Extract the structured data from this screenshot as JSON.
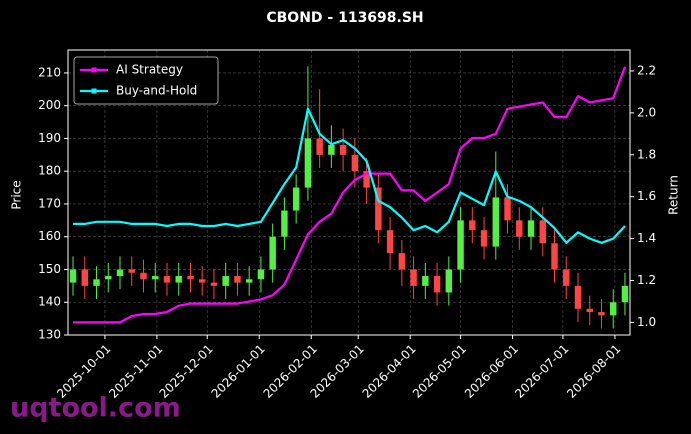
{
  "chart_data": {
    "type": "candlestick",
    "title": "CBOND - 113698.SH",
    "ylabel": "Price",
    "y2label": "Return",
    "watermark": "uqtool.com",
    "x": [
      "2025-09-12",
      "2025-09-19",
      "2025-09-26",
      "2025-10-03",
      "2025-10-10",
      "2025-10-17",
      "2025-10-24",
      "2025-10-31",
      "2025-11-07",
      "2025-11-14",
      "2025-11-21",
      "2025-11-28",
      "2025-12-05",
      "2025-12-12",
      "2025-12-19",
      "2025-12-26",
      "2026-01-02",
      "2026-01-09",
      "2026-01-16",
      "2026-01-23",
      "2026-01-30",
      "2026-02-06",
      "2026-02-13",
      "2026-02-20",
      "2026-02-27",
      "2026-03-06",
      "2026-03-13",
      "2026-03-20",
      "2026-03-27",
      "2026-04-03",
      "2026-04-10",
      "2026-04-17",
      "2026-04-24",
      "2026-05-01",
      "2026-05-08",
      "2026-05-15",
      "2026-05-22",
      "2026-05-29",
      "2026-06-05",
      "2026-06-12",
      "2026-06-19",
      "2026-06-26",
      "2026-07-03",
      "2026-07-10",
      "2026-07-17",
      "2026-07-24",
      "2026-07-31",
      "2026-08-07"
    ],
    "open": [
      146,
      150,
      145,
      147,
      148,
      150,
      149,
      147,
      148,
      146,
      148,
      147,
      146,
      145,
      148,
      146,
      147,
      150,
      160,
      168,
      175,
      190,
      185,
      188,
      185,
      180,
      175,
      162,
      155,
      150,
      145,
      148,
      143,
      150,
      165,
      162,
      157,
      172,
      165,
      160,
      165,
      158,
      150,
      145,
      138,
      137,
      136,
      140
    ],
    "high": [
      154,
      154,
      151,
      152,
      154,
      154,
      153,
      152,
      152,
      152,
      152,
      151,
      150,
      152,
      152,
      151,
      154,
      164,
      172,
      179,
      212,
      205,
      194,
      193,
      190,
      184,
      179,
      166,
      159,
      154,
      152,
      152,
      154,
      169,
      169,
      166,
      186,
      176,
      169,
      169,
      169,
      162,
      154,
      149,
      142,
      141,
      144,
      149
    ],
    "low": [
      142,
      141,
      141,
      143,
      144,
      145,
      143,
      143,
      142,
      142,
      143,
      142,
      141,
      141,
      142,
      142,
      143,
      146,
      156,
      164,
      171,
      181,
      181,
      180,
      175,
      170,
      158,
      150,
      145,
      141,
      141,
      139,
      139,
      146,
      158,
      153,
      153,
      161,
      156,
      156,
      154,
      146,
      141,
      134,
      133,
      132,
      132,
      136
    ],
    "close": [
      150,
      145,
      147,
      148,
      150,
      149,
      147,
      148,
      146,
      148,
      147,
      146,
      145,
      148,
      146,
      147,
      150,
      160,
      168,
      175,
      190,
      185,
      188,
      185,
      180,
      175,
      162,
      155,
      150,
      145,
      148,
      143,
      150,
      165,
      162,
      157,
      172,
      165,
      160,
      165,
      158,
      150,
      145,
      138,
      137,
      136,
      140,
      145
    ],
    "up_color": "#55ee44",
    "down_color": "#ff4444",
    "series": [
      {
        "name": "AI Strategy",
        "color": "#ff00ff",
        "axis": "y2",
        "values": [
          1.0,
          1.0,
          1.0,
          1.0,
          1.0,
          1.03,
          1.04,
          1.04,
          1.05,
          1.08,
          1.09,
          1.09,
          1.09,
          1.09,
          1.09,
          1.1,
          1.11,
          1.13,
          1.18,
          1.3,
          1.42,
          1.48,
          1.52,
          1.62,
          1.68,
          1.71,
          1.71,
          1.71,
          1.63,
          1.63,
          1.58,
          1.62,
          1.66,
          1.83,
          1.88,
          1.88,
          1.9,
          2.02,
          2.03,
          2.04,
          2.05,
          1.98,
          1.98,
          2.08,
          2.05,
          2.06,
          2.07,
          2.22
        ]
      },
      {
        "name": "Buy-and-Hold",
        "color": "#00ffff",
        "axis": "y2",
        "values": [
          1.47,
          1.47,
          1.48,
          1.48,
          1.48,
          1.47,
          1.47,
          1.47,
          1.46,
          1.47,
          1.47,
          1.46,
          1.46,
          1.47,
          1.46,
          1.47,
          1.48,
          1.57,
          1.66,
          1.74,
          2.02,
          1.9,
          1.85,
          1.87,
          1.83,
          1.77,
          1.58,
          1.55,
          1.5,
          1.44,
          1.46,
          1.43,
          1.48,
          1.62,
          1.59,
          1.56,
          1.72,
          1.6,
          1.58,
          1.55,
          1.5,
          1.45,
          1.38,
          1.43,
          1.4,
          1.38,
          1.4,
          1.46
        ]
      }
    ],
    "xlim": [
      "2025-09-09",
      "2026-08-10"
    ],
    "xticks": [
      "2025-10-01",
      "2025-11-01",
      "2025-12-01",
      "2026-01-01",
      "2026-02-01",
      "2026-03-01",
      "2026-04-01",
      "2026-05-01",
      "2026-06-01",
      "2026-07-01",
      "2026-08-01"
    ],
    "ylim": [
      130,
      217
    ],
    "yticks": [
      130,
      140,
      150,
      160,
      170,
      180,
      190,
      200,
      210
    ],
    "y2lim": [
      0.94,
      2.3
    ],
    "y2ticks": [
      {
        "value": 1.0,
        "label": "1.0"
      },
      1.2,
      1.4,
      1.6,
      1.8,
      {
        "value": 2.0,
        "label": "2.0"
      },
      2.2
    ],
    "grid": true,
    "legend": "upper left"
  }
}
